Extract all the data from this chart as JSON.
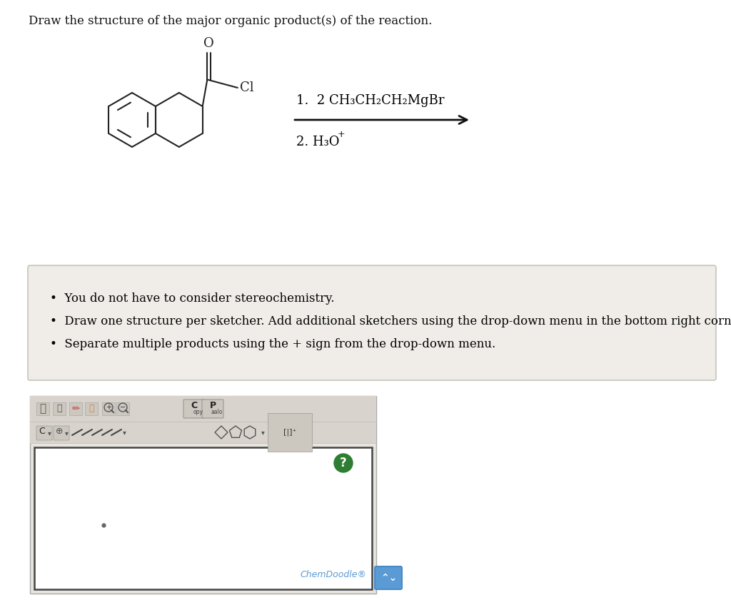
{
  "title_text": "Draw the structure of the major organic product(s) of the reaction.",
  "title_fontsize": 12.0,
  "title_color": "#111111",
  "bg_color": "#ffffff",
  "bullet_box_color": "#f0ede8",
  "bullet_box_border": "#c8c4bc",
  "bullet_texts": [
    "You do not have to consider stereochemistry.",
    "Draw one structure per sketcher. Add additional sketchers using the drop-down menu in the bottom right corner.",
    "Separate multiple products using the + sign from the drop-down menu."
  ],
  "mol_color": "#222222",
  "mol_lw": 1.5,
  "arrow_color": "#111111",
  "chemdoodle_text": "ChemDoodle®",
  "chemdoodle_color": "#5b9bd5",
  "question_mark_color": "#2e7d32",
  "toolbar_bg": "#e0dbd4",
  "canvas_border": "#444444"
}
